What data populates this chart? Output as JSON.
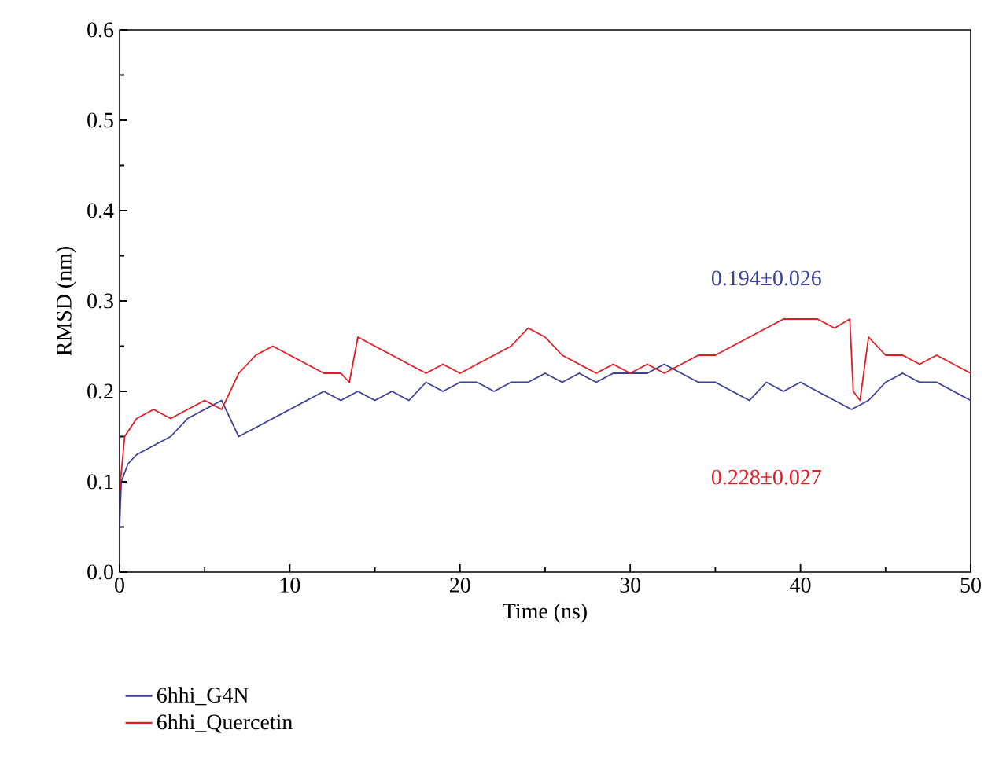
{
  "chart_data": {
    "type": "line",
    "xlabel": "Time (ns)",
    "ylabel": "RMSD (nm)",
    "xlim": [
      0,
      50
    ],
    "xticks": [
      0,
      10,
      20,
      30,
      40,
      50
    ],
    "ylim": [
      0,
      0.6
    ],
    "yticks": [
      {
        "value": 0,
        "label": "0.0"
      },
      0.1,
      0.2,
      0.3,
      0.4,
      0.5,
      0.6
    ],
    "legend": "bottom",
    "grid": false,
    "marker": "none",
    "line_style": "solid",
    "annotations": [
      "0.194±0.026",
      "0.228±0.027"
    ],
    "series": [
      {
        "name": "6hhi_G4N",
        "color": "#3a3f98",
        "x": [
          0,
          0.1,
          0.5,
          1,
          2,
          3,
          4,
          5,
          6,
          6.5,
          7,
          8,
          9,
          10,
          11,
          12,
          13,
          14,
          15,
          16,
          17,
          18,
          19,
          20,
          21,
          22,
          23,
          24,
          25,
          26,
          27,
          28,
          29,
          30,
          31,
          32,
          33,
          34,
          35,
          36,
          37,
          38,
          39,
          40,
          41,
          42,
          43,
          44,
          45,
          46,
          47,
          48,
          49,
          50
        ],
        "values": [
          0.05,
          0.1,
          0.12,
          0.13,
          0.14,
          0.15,
          0.17,
          0.18,
          0.19,
          0.17,
          0.15,
          0.16,
          0.17,
          0.18,
          0.19,
          0.2,
          0.19,
          0.2,
          0.19,
          0.2,
          0.19,
          0.21,
          0.2,
          0.21,
          0.21,
          0.2,
          0.21,
          0.21,
          0.22,
          0.21,
          0.22,
          0.21,
          0.22,
          0.22,
          0.22,
          0.23,
          0.22,
          0.21,
          0.21,
          0.2,
          0.19,
          0.21,
          0.2,
          0.21,
          0.2,
          0.19,
          0.18,
          0.19,
          0.21,
          0.22,
          0.21,
          0.21,
          0.2,
          0.19
        ]
      },
      {
        "name": "6hhi_Quercetin",
        "color": "#e31b23",
        "x": [
          0,
          0.3,
          1,
          2,
          3,
          4,
          5,
          6,
          7,
          8,
          9,
          10,
          11,
          12,
          13,
          13.5,
          14,
          15,
          16,
          17,
          18,
          19,
          20,
          21,
          22,
          23,
          24,
          25,
          26,
          27,
          28,
          29,
          30,
          31,
          32,
          33,
          34,
          35,
          36,
          37,
          38,
          39,
          40,
          41,
          42,
          42.9,
          43.1,
          43.5,
          44,
          45,
          46,
          47,
          48,
          49,
          50
        ],
        "values": [
          0.09,
          0.15,
          0.17,
          0.18,
          0.17,
          0.18,
          0.19,
          0.18,
          0.22,
          0.24,
          0.25,
          0.24,
          0.23,
          0.22,
          0.22,
          0.21,
          0.26,
          0.25,
          0.24,
          0.23,
          0.22,
          0.23,
          0.22,
          0.23,
          0.24,
          0.25,
          0.27,
          0.26,
          0.24,
          0.23,
          0.22,
          0.23,
          0.22,
          0.23,
          0.22,
          0.23,
          0.24,
          0.24,
          0.25,
          0.26,
          0.27,
          0.28,
          0.28,
          0.28,
          0.27,
          0.28,
          0.2,
          0.19,
          0.26,
          0.24,
          0.24,
          0.23,
          0.24,
          0.23,
          0.22
        ]
      }
    ]
  }
}
